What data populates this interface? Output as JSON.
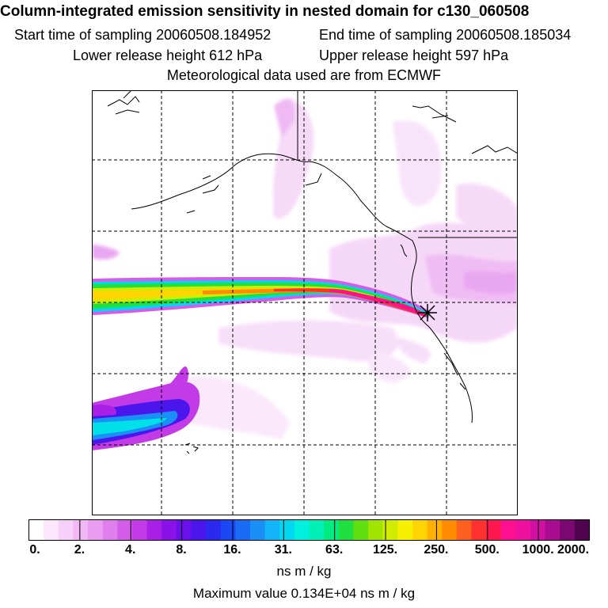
{
  "header": {
    "title": "Column-integrated emission sensitivity in nested domain for c130_060508",
    "start_time": "Start time of sampling 20060508.184952",
    "end_time": "End time of sampling 20060508.185034",
    "lower_release": "Lower release height  612 hPa",
    "upper_release": "Upper release height  597 hPa",
    "met_data": "Meteorological data used are from ECMWF"
  },
  "map": {
    "release_marker": "asterisk",
    "colors": {
      "plume_core": "#ff1a6e",
      "plume_mid": "#ffd000",
      "plume_outer": "#33d633",
      "plume_edge": "#00e5e5",
      "haze": "#f3c8f7",
      "coast": "#000000",
      "grid": "#000000"
    }
  },
  "colorbar": {
    "labels": [
      "0.",
      "2.",
      "4.",
      "8.",
      "16.",
      "31.",
      "63.",
      "125.",
      "250.",
      "500.",
      "1000.",
      "2000."
    ],
    "colors": [
      "#ffffff",
      "#fbe6fc",
      "#f6d0f8",
      "#f1b8f5",
      "#ea9ef2",
      "#e07eee",
      "#d35ce9",
      "#c23be6",
      "#a820e6",
      "#8a12e8",
      "#6a10ea",
      "#4a16ec",
      "#2b28ef",
      "#1a48f2",
      "#1a6cf4",
      "#1a90f6",
      "#14b4f8",
      "#00d8f2",
      "#00f0e0",
      "#00f0b8",
      "#00ec80",
      "#20e040",
      "#60e010",
      "#a0e400",
      "#d0ec00",
      "#f4f000",
      "#ffd400",
      "#ffb000",
      "#ff8c00",
      "#ff6020",
      "#ff3030",
      "#ff1850",
      "#ff1090",
      "#f010a0",
      "#d010a0",
      "#a80c90",
      "#7a0870",
      "#500450"
    ],
    "units": "ns m / kg"
  },
  "footer": {
    "max_value": "Maximum value  0.134E+04 ns m / kg"
  }
}
